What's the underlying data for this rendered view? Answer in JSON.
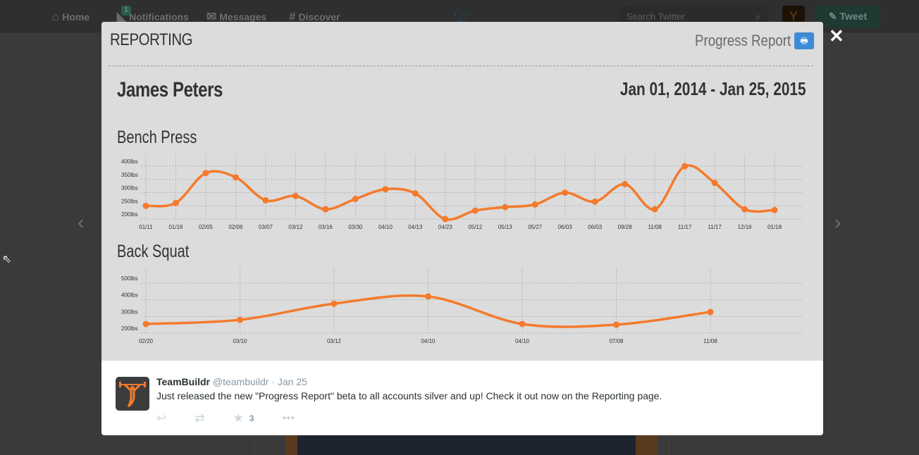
{
  "topbar": {
    "nav": [
      {
        "label": "Home",
        "icon": "home-icon"
      },
      {
        "label": "Notifications",
        "icon": "notifications-icon",
        "badge": "1"
      },
      {
        "label": "Messages",
        "icon": "messages-icon"
      },
      {
        "label": "Discover",
        "icon": "hash-icon"
      }
    ],
    "search_placeholder": "Search Twitter",
    "tweet_label": "Tweet"
  },
  "modal": {
    "title": "REPORTING",
    "report_label": "Progress Report",
    "athlete": "James Peters",
    "date_range": "Jan 01, 2014 - Jan 25, 2015"
  },
  "chart_data": [
    {
      "type": "line",
      "title": "Bench Press",
      "categories": [
        "01/11",
        "01/16",
        "02/05",
        "02/06",
        "03/07",
        "03/12",
        "03/16",
        "03/30",
        "04/10",
        "04/13",
        "04/23",
        "05/12",
        "05/13",
        "05/27",
        "06/03",
        "06/03",
        "09/28",
        "11/08",
        "11/17",
        "11/17",
        "12/16",
        "01/18"
      ],
      "values": [
        250,
        261,
        374,
        358,
        271,
        287,
        237,
        276,
        313,
        297,
        200,
        232,
        245,
        255,
        300,
        266,
        332,
        237,
        400,
        337,
        237,
        234
      ],
      "yticks": [
        "200lbs",
        "250lbs",
        "300lbs",
        "350lbs",
        "400lbs"
      ],
      "ylim": [
        200,
        400
      ],
      "color": "#f47a2c",
      "grid": true
    },
    {
      "type": "line",
      "title": "Back Squat",
      "categories": [
        "02/20",
        "03/10",
        "03/12",
        "04/10",
        "04/10",
        "07/08",
        "11/08"
      ],
      "values": [
        255,
        280,
        377,
        420,
        255,
        251,
        327
      ],
      "yticks": [
        "200lbs",
        "300lbs",
        "400lbs",
        "500lbs"
      ],
      "ylim": [
        200,
        500
      ],
      "color": "#f47a2c",
      "grid": true
    }
  ],
  "tweet": {
    "name": "TeamBuildr",
    "handle": "@teambuildr",
    "time": "· Jan 25",
    "text": "Just released the new \"Progress Report\" beta to all accounts silver and up! Check it out now on the Reporting page.",
    "favorites": "3"
  }
}
